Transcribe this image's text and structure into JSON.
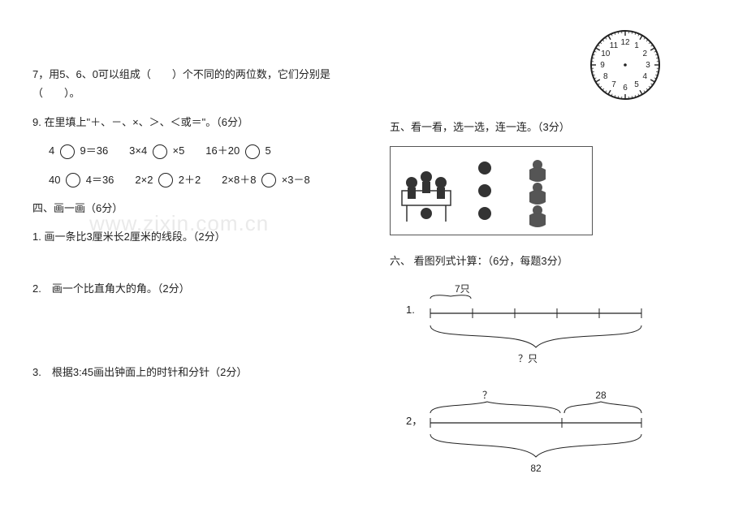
{
  "left": {
    "q7": "7，用5、6、0可以组成（　　）个不同的的两位数，它们分别是（　　）。",
    "q9_title": "9. 在里填上\"＋、－、×、＞、＜或＝\"。（6分）",
    "q9_row1_parts": [
      "4",
      "9＝36　　3×4",
      "×5　　16＋20",
      "5"
    ],
    "q9_row2_parts": [
      "40",
      "4＝36　　2×2",
      "2＋2　　2×8＋8",
      "×3－8"
    ],
    "s4_title": "四、画一画（6分）",
    "s4_q1": "1. 画一条比3厘米长2厘米的线段。（2分）",
    "s4_q2": "2.　画一个比直角大的角。（2分）",
    "s4_q3": "3.　根据3:45画出钟面上的时针和分针（2分）",
    "watermark": "www.zixin.com.cn"
  },
  "right": {
    "s5_title": "五、看一看，选一选，连一连。（3分）",
    "s6_title": "六、 看图列式计算：（6分，每题3分）",
    "d1_label_top": "7只",
    "d1_label_bottom": "？只",
    "d1_prefix": "1.",
    "d2_prefix": "2，",
    "d2_label_q": "？",
    "d2_label_28": "28",
    "d2_label_82": "82"
  },
  "clock": {
    "radius": 42,
    "tick_color": "#222",
    "face_color": "#ffffff",
    "border_color": "#222",
    "numbers": [
      "12",
      "1",
      "2",
      "3",
      "4",
      "5",
      "6",
      "7",
      "8",
      "9",
      "10",
      "11"
    ],
    "font_size": 10
  },
  "styles": {
    "text_color": "#222222",
    "background": "#ffffff",
    "circle_border": "#222222",
    "watermark_color": "#eaeaea"
  }
}
